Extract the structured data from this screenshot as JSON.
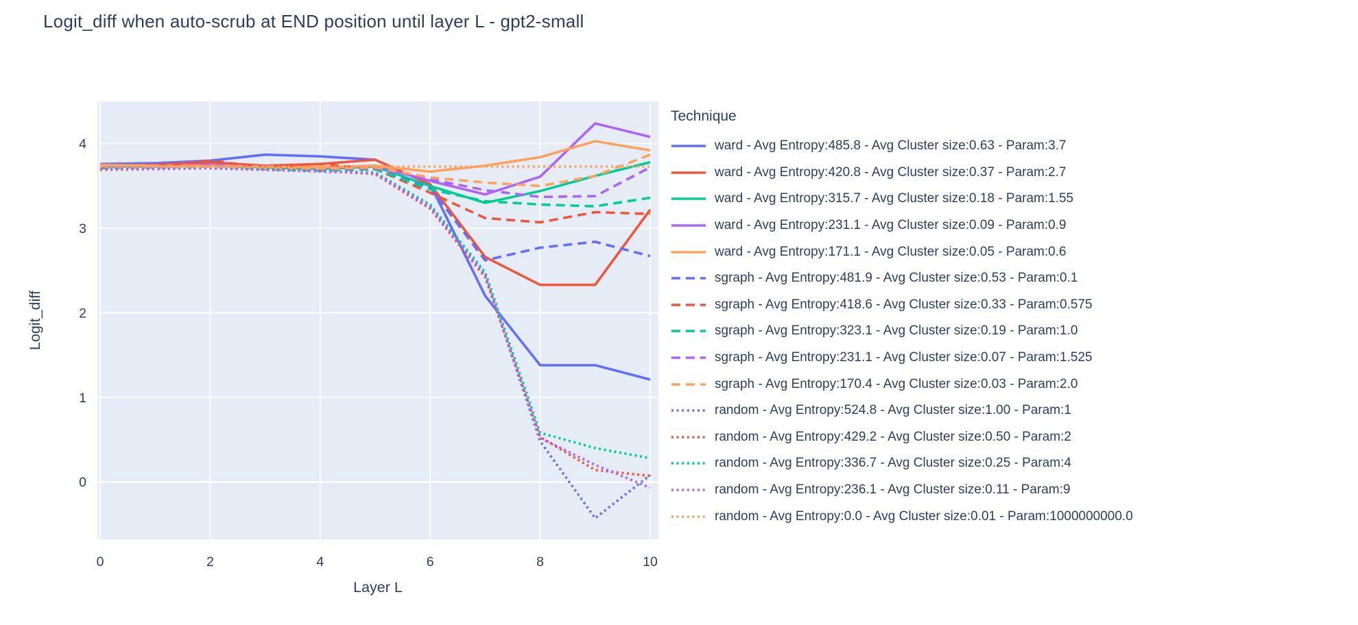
{
  "chart_data": {
    "type": "line",
    "title": "Logit_diff when auto-scrub at END position until layer L - gpt2-small",
    "xlabel": "Layer L",
    "ylabel": "Logit_diff",
    "legend_title": "Technique",
    "x": [
      0,
      1,
      2,
      3,
      4,
      5,
      6,
      7,
      8,
      9,
      10
    ],
    "xticks": [
      0,
      2,
      4,
      6,
      8,
      10
    ],
    "yticks": [
      0,
      1,
      2,
      3,
      4
    ],
    "xrange": [
      -0.05,
      10.15
    ],
    "yrange": [
      -0.68,
      4.5
    ],
    "grid": true,
    "legend_position": "right",
    "plot_bg": "#e5ecf6",
    "grid_color": "#ffffff",
    "text_color": "#2a3f5f",
    "palette": {
      "blue": "#636efa",
      "red": "#ef553b",
      "green": "#00cc96",
      "purple": "#ab63fa",
      "orange": "#ffa15a"
    },
    "series": [
      {
        "name": "ward - Avg Entropy:485.8 - Avg Cluster size:0.63 - Param:3.7",
        "color": "#636efa",
        "dash": "solid",
        "values": [
          3.76,
          3.77,
          3.8,
          3.87,
          3.85,
          3.81,
          3.52,
          2.2,
          1.38,
          1.38,
          1.21
        ]
      },
      {
        "name": "ward - Avg Entropy:420.8 - Avg Cluster size:0.37 - Param:2.7",
        "color": "#ef553b",
        "dash": "solid",
        "values": [
          3.74,
          3.75,
          3.78,
          3.74,
          3.76,
          3.81,
          3.52,
          2.66,
          2.33,
          2.33,
          3.22
        ]
      },
      {
        "name": "ward - Avg Entropy:315.7 - Avg Cluster size:0.18 - Param:1.55",
        "color": "#00cc96",
        "dash": "solid",
        "values": [
          3.73,
          3.73,
          3.74,
          3.72,
          3.7,
          3.73,
          3.5,
          3.3,
          3.44,
          3.62,
          3.78
        ]
      },
      {
        "name": "ward - Avg Entropy:231.1 - Avg Cluster size:0.09 - Param:0.9",
        "color": "#ab63fa",
        "dash": "solid",
        "values": [
          3.74,
          3.74,
          3.75,
          3.73,
          3.71,
          3.74,
          3.56,
          3.4,
          3.61,
          4.24,
          4.08
        ]
      },
      {
        "name": "ward - Avg Entropy:171.1 - Avg Cluster size:0.05 - Param:0.6",
        "color": "#ffa15a",
        "dash": "solid",
        "values": [
          3.75,
          3.74,
          3.74,
          3.73,
          3.72,
          3.74,
          3.67,
          3.74,
          3.84,
          4.03,
          3.92
        ]
      },
      {
        "name": "sgraph - Avg Entropy:481.9 - Avg Cluster size:0.53 - Param:0.1",
        "color": "#636efa",
        "dash": "dash",
        "values": [
          3.72,
          3.72,
          3.73,
          3.71,
          3.69,
          3.7,
          3.48,
          2.62,
          2.77,
          2.84,
          2.67
        ]
      },
      {
        "name": "sgraph - Avg Entropy:418.6 - Avg Cluster size:0.33 - Param:0.575",
        "color": "#ef553b",
        "dash": "dash",
        "values": [
          3.71,
          3.73,
          3.8,
          3.72,
          3.76,
          3.7,
          3.42,
          3.12,
          3.07,
          3.19,
          3.17
        ]
      },
      {
        "name": "sgraph - Avg Entropy:323.1 - Avg Cluster size:0.19 - Param:1.0",
        "color": "#00cc96",
        "dash": "dash",
        "values": [
          3.72,
          3.72,
          3.73,
          3.7,
          3.68,
          3.7,
          3.46,
          3.32,
          3.28,
          3.26,
          3.36
        ]
      },
      {
        "name": "sgraph - Avg Entropy:231.1 - Avg Cluster size:0.07 - Param:1.525",
        "color": "#ab63fa",
        "dash": "dash",
        "values": [
          3.73,
          3.72,
          3.74,
          3.71,
          3.69,
          3.71,
          3.58,
          3.45,
          3.37,
          3.38,
          3.72
        ]
      },
      {
        "name": "sgraph - Avg Entropy:170.4 - Avg Cluster size:0.03 - Param:2.0",
        "color": "#ffa15a",
        "dash": "dash",
        "values": [
          3.74,
          3.73,
          3.73,
          3.71,
          3.7,
          3.72,
          3.6,
          3.54,
          3.5,
          3.62,
          3.87
        ]
      },
      {
        "name": "random - Avg Entropy:524.8 - Avg Cluster size:1.00 - Param:1",
        "color": "#636efa",
        "dash": "dot",
        "values": [
          3.7,
          3.7,
          3.71,
          3.69,
          3.68,
          3.65,
          3.26,
          2.45,
          0.48,
          -0.43,
          0.08
        ]
      },
      {
        "name": "random - Avg Entropy:429.2 - Avg Cluster size:0.50 - Param:2",
        "color": "#ef553b",
        "dash": "dot",
        "values": [
          3.69,
          3.7,
          3.72,
          3.69,
          3.68,
          3.64,
          3.23,
          2.42,
          0.53,
          0.14,
          0.07
        ]
      },
      {
        "name": "random - Avg Entropy:336.7 - Avg Cluster size:0.25 - Param:4",
        "color": "#00cc96",
        "dash": "dot",
        "values": [
          3.7,
          3.71,
          3.72,
          3.7,
          3.68,
          3.66,
          3.28,
          2.48,
          0.58,
          0.4,
          0.28
        ]
      },
      {
        "name": "random - Avg Entropy:236.1 - Avg Cluster size:0.11 - Param:9",
        "color": "#ab63fa",
        "dash": "dot",
        "values": [
          3.71,
          3.7,
          3.71,
          3.69,
          3.67,
          3.65,
          3.25,
          2.44,
          0.52,
          0.2,
          -0.07
        ]
      },
      {
        "name": "random - Avg Entropy:0.0 - Avg Cluster size:0.01 - Param:1000000000.0",
        "color": "#ffa15a",
        "dash": "dot",
        "values": [
          3.73,
          3.73,
          3.73,
          3.73,
          3.73,
          3.73,
          3.73,
          3.73,
          3.73,
          3.73,
          3.73
        ]
      }
    ]
  }
}
